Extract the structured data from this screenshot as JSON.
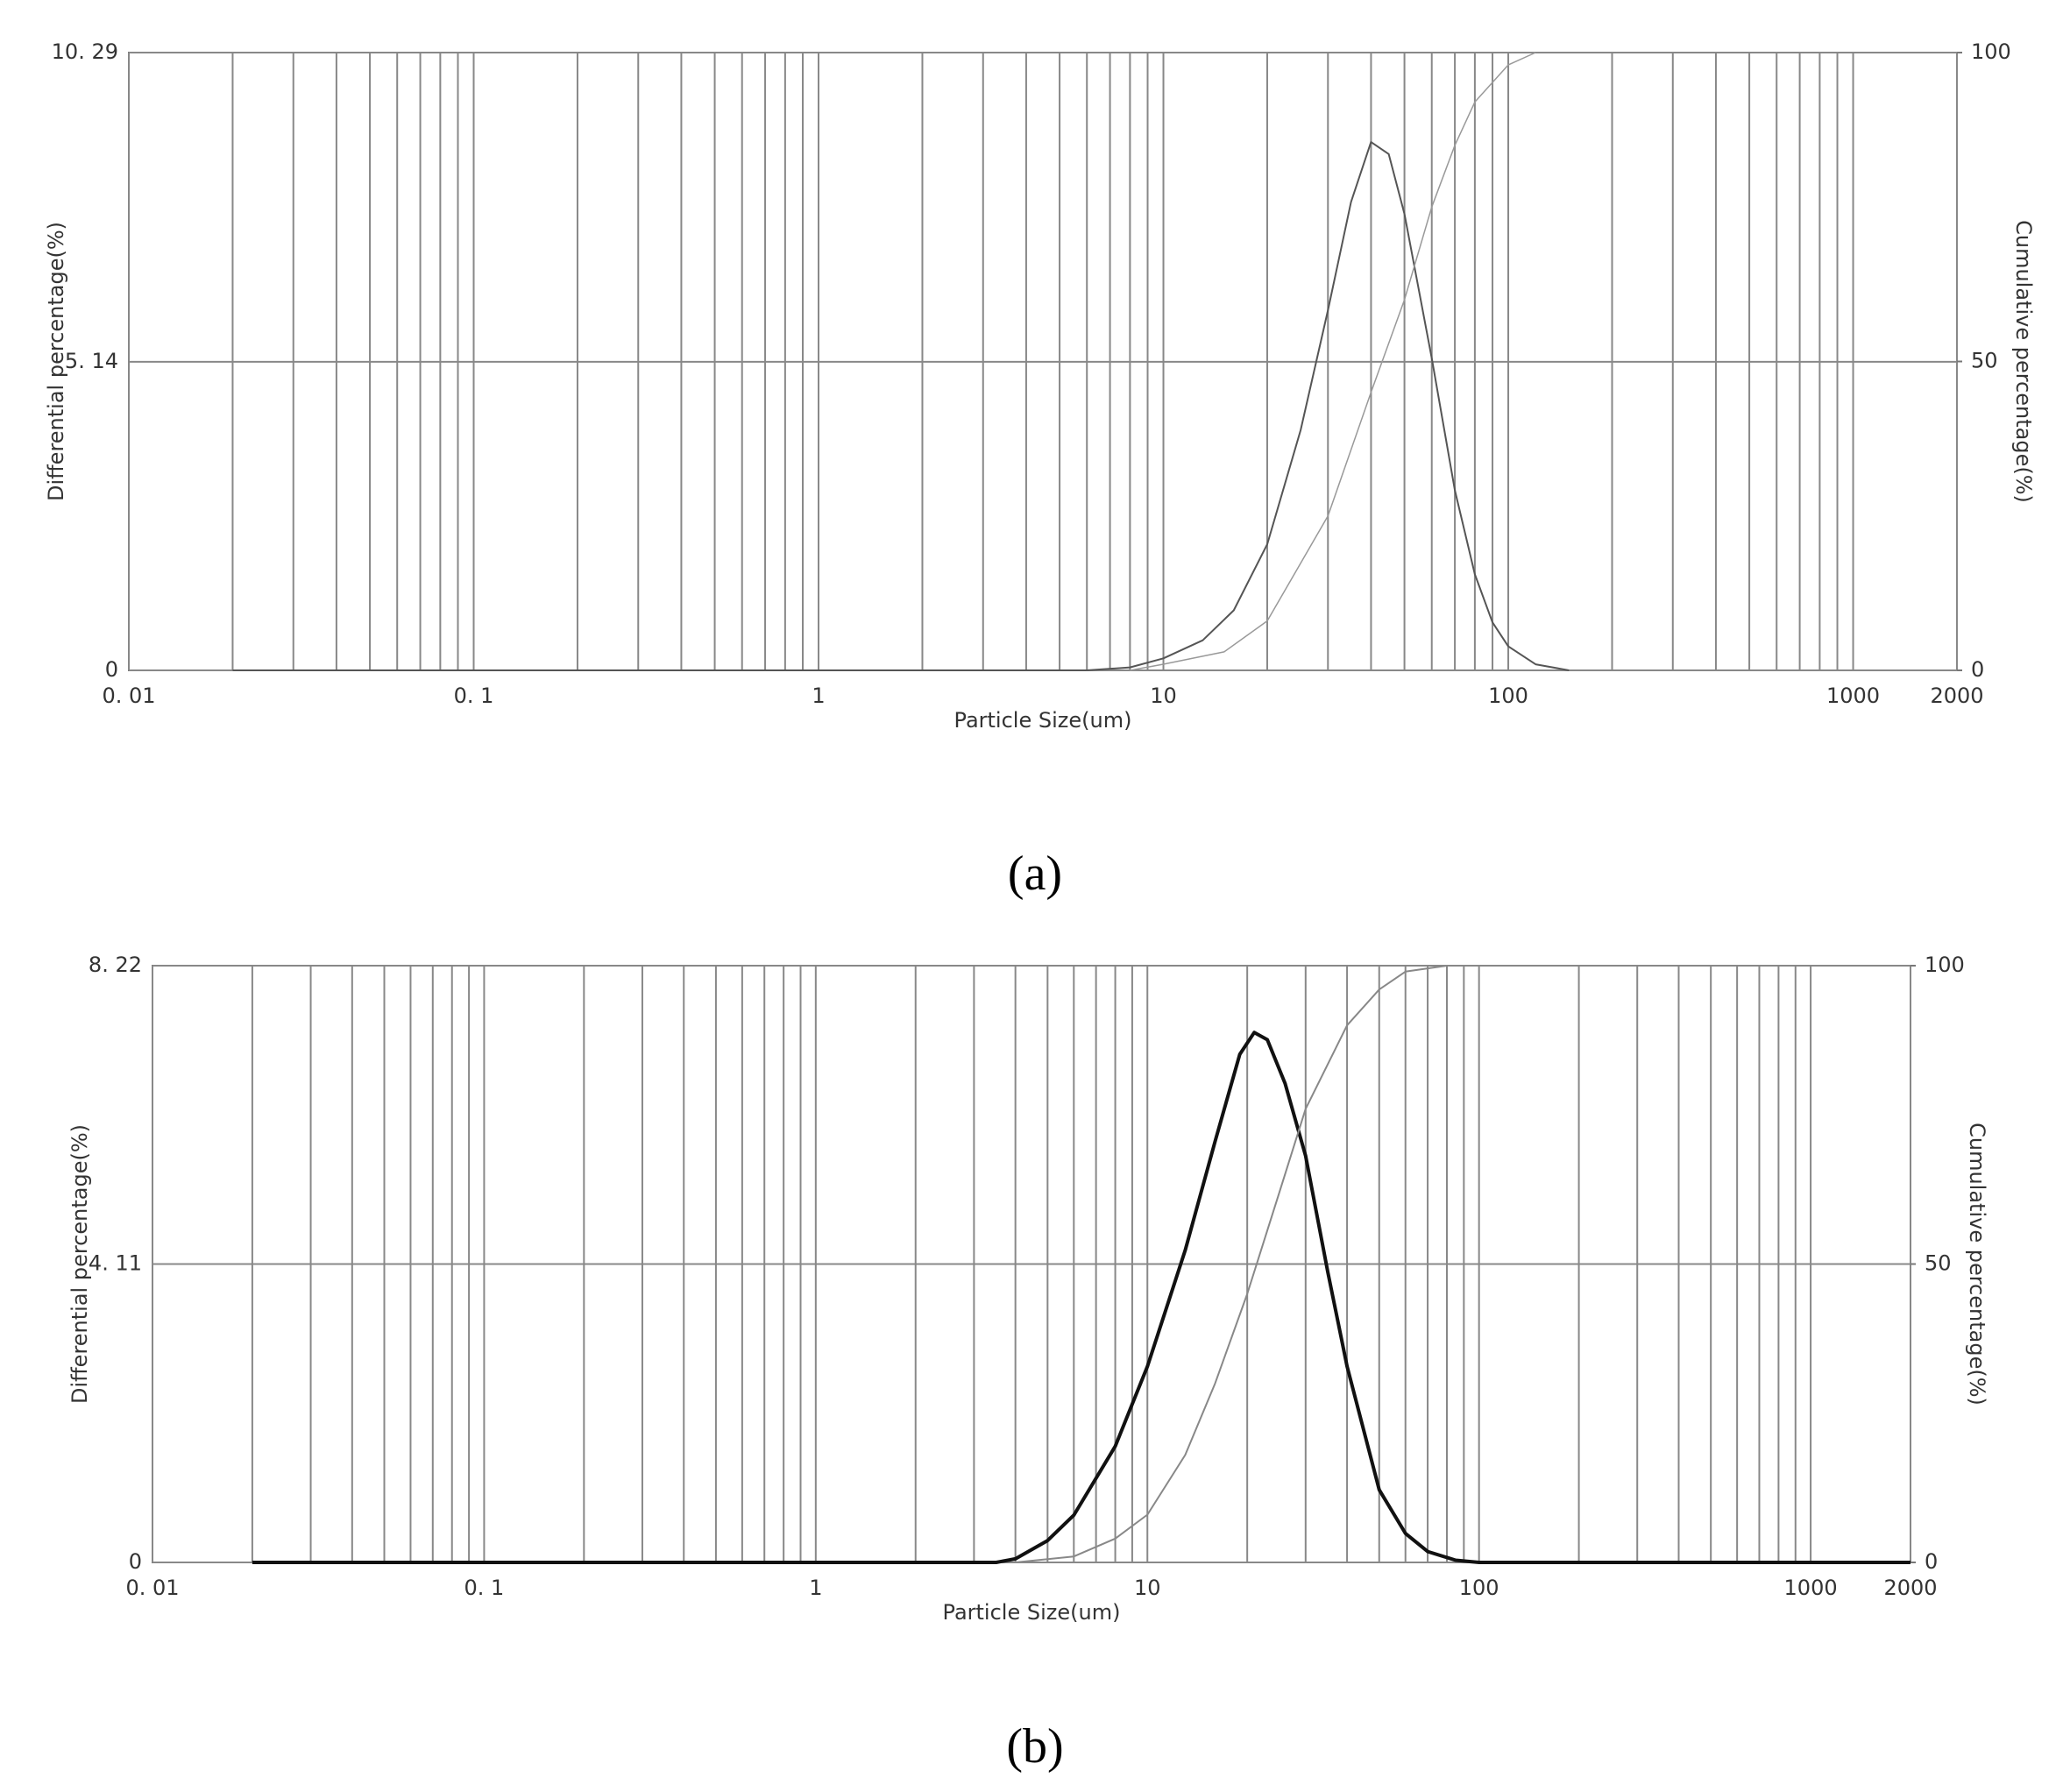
{
  "chart_data": [
    {
      "type": "line",
      "caption": "(a)",
      "xlabel": "Particle Size(um)",
      "ylabel": "Differential percentage(%)",
      "y2label": "Cumulative percentage(%)",
      "log_x": true,
      "grid": true,
      "minor_grid": true,
      "xlim": [
        0.01,
        2000
      ],
      "xticks": [
        {
          "value": 0.01,
          "label": "0. 01"
        },
        {
          "value": 0.1,
          "label": "0. 1"
        },
        1,
        10,
        100,
        1000,
        2000
      ],
      "ylim": [
        0,
        10.29
      ],
      "yticks": [
        0,
        {
          "value": 5.14,
          "label": "5. 14"
        },
        {
          "value": 10.29,
          "label": "10. 29"
        }
      ],
      "y2lim": [
        0,
        100
      ],
      "y2ticks": [
        0,
        50,
        100
      ],
      "series": [
        {
          "color": "#555555",
          "width": 2,
          "x": [
            0.02,
            1,
            6,
            8,
            10,
            13,
            16,
            20,
            25,
            30,
            35,
            40,
            45,
            50,
            60,
            70,
            80,
            90,
            100,
            120,
            150
          ],
          "values": [
            0,
            0,
            0,
            0.05,
            0.2,
            0.5,
            1.0,
            2.1,
            4.0,
            6.0,
            7.8,
            8.8,
            8.6,
            7.6,
            5.2,
            3.0,
            1.6,
            0.8,
            0.4,
            0.1,
            0
          ]
        },
        {
          "color": "#999999",
          "width": 1.5,
          "axis": "y2",
          "x": [
            8,
            10,
            15,
            20,
            30,
            40,
            50,
            60,
            70,
            80,
            100,
            120
          ],
          "values": [
            0,
            1,
            3,
            8,
            25,
            45,
            60,
            75,
            85,
            92,
            98,
            100
          ]
        }
      ]
    },
    {
      "type": "line",
      "caption": "(b)",
      "xlabel": "Particle Size(um)",
      "ylabel": "Differential percentage(%)",
      "y2label": "Cumulative percentage(%)",
      "log_x": true,
      "grid": true,
      "minor_grid": true,
      "xlim": [
        0.01,
        2000
      ],
      "xticks": [
        {
          "value": 0.01,
          "label": "0. 01"
        },
        {
          "value": 0.1,
          "label": "0. 1"
        },
        1,
        10,
        100,
        1000,
        2000
      ],
      "ylim": [
        0,
        8.22
      ],
      "yticks": [
        0,
        {
          "value": 4.11,
          "label": "4. 11"
        },
        {
          "value": 8.22,
          "label": "8. 22"
        }
      ],
      "y2lim": [
        0,
        100
      ],
      "y2ticks": [
        0,
        50,
        100
      ],
      "series": [
        {
          "color": "#111111",
          "width": 4,
          "x": [
            0.02,
            1,
            3.5,
            4,
            5,
            6,
            8,
            10,
            13,
            16,
            19,
            21,
            23,
            26,
            30,
            35,
            40,
            50,
            60,
            70,
            85,
            100,
            2000
          ],
          "values": [
            0,
            0,
            0,
            0.05,
            0.3,
            0.65,
            1.6,
            2.7,
            4.3,
            5.8,
            7.0,
            7.3,
            7.2,
            6.6,
            5.6,
            4.0,
            2.7,
            1.0,
            0.4,
            0.15,
            0.03,
            0,
            0
          ]
        },
        {
          "color": "#888888",
          "width": 2,
          "axis": "y2",
          "x": [
            4,
            6,
            8,
            10,
            13,
            16,
            20,
            25,
            30,
            40,
            50,
            60,
            80,
            100
          ],
          "values": [
            0,
            1,
            4,
            8,
            18,
            30,
            45,
            62,
            76,
            90,
            96,
            99,
            100,
            100
          ]
        }
      ]
    }
  ]
}
